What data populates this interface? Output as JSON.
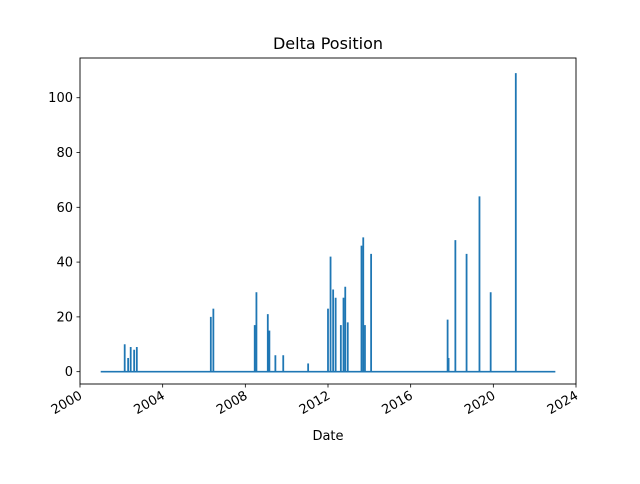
{
  "chart_data": {
    "type": "line",
    "title": "Delta Position",
    "xlabel": "Date",
    "ylabel": "",
    "x_ticks": [
      "2000",
      "2004",
      "2008",
      "2012",
      "2016",
      "2020",
      "2024"
    ],
    "y_ticks": [
      "0",
      "20",
      "40",
      "60",
      "80",
      "100"
    ],
    "xlim": [
      "2000-01-01",
      "2024-01-01"
    ],
    "ylim": [
      -4.5,
      114.5
    ],
    "grid": false,
    "legend": "none",
    "series": [
      {
        "color": "#1f77b4",
        "baseline": 0,
        "x_range": [
          "2001-01-01",
          "2023-01-01"
        ],
        "spikes": [
          {
            "x": "2002-03-01",
            "y": 10
          },
          {
            "x": "2002-05-01",
            "y": 5
          },
          {
            "x": "2002-06-15",
            "y": 9
          },
          {
            "x": "2002-08-15",
            "y": 8
          },
          {
            "x": "2002-10-01",
            "y": 9
          },
          {
            "x": "2006-05-01",
            "y": 20
          },
          {
            "x": "2006-06-15",
            "y": 23
          },
          {
            "x": "2008-06-15",
            "y": 17
          },
          {
            "x": "2008-07-15",
            "y": 29
          },
          {
            "x": "2009-02-01",
            "y": 21
          },
          {
            "x": "2009-03-01",
            "y": 15
          },
          {
            "x": "2009-06-15",
            "y": 6
          },
          {
            "x": "2009-11-01",
            "y": 6
          },
          {
            "x": "2011-01-15",
            "y": 3
          },
          {
            "x": "2012-01-01",
            "y": 23
          },
          {
            "x": "2012-02-15",
            "y": 42
          },
          {
            "x": "2012-04-01",
            "y": 30
          },
          {
            "x": "2012-05-15",
            "y": 27
          },
          {
            "x": "2012-08-15",
            "y": 17
          },
          {
            "x": "2012-10-01",
            "y": 27
          },
          {
            "x": "2012-11-01",
            "y": 31
          },
          {
            "x": "2012-12-15",
            "y": 18
          },
          {
            "x": "2013-08-15",
            "y": 46
          },
          {
            "x": "2013-09-15",
            "y": 49
          },
          {
            "x": "2013-10-15",
            "y": 17
          },
          {
            "x": "2014-02-01",
            "y": 43
          },
          {
            "x": "2017-10-15",
            "y": 19
          },
          {
            "x": "2017-11-01",
            "y": 5
          },
          {
            "x": "2018-03-01",
            "y": 48
          },
          {
            "x": "2018-09-15",
            "y": 43
          },
          {
            "x": "2019-05-01",
            "y": 64
          },
          {
            "x": "2019-11-15",
            "y": 29
          },
          {
            "x": "2021-02-01",
            "y": 109
          }
        ]
      }
    ]
  }
}
